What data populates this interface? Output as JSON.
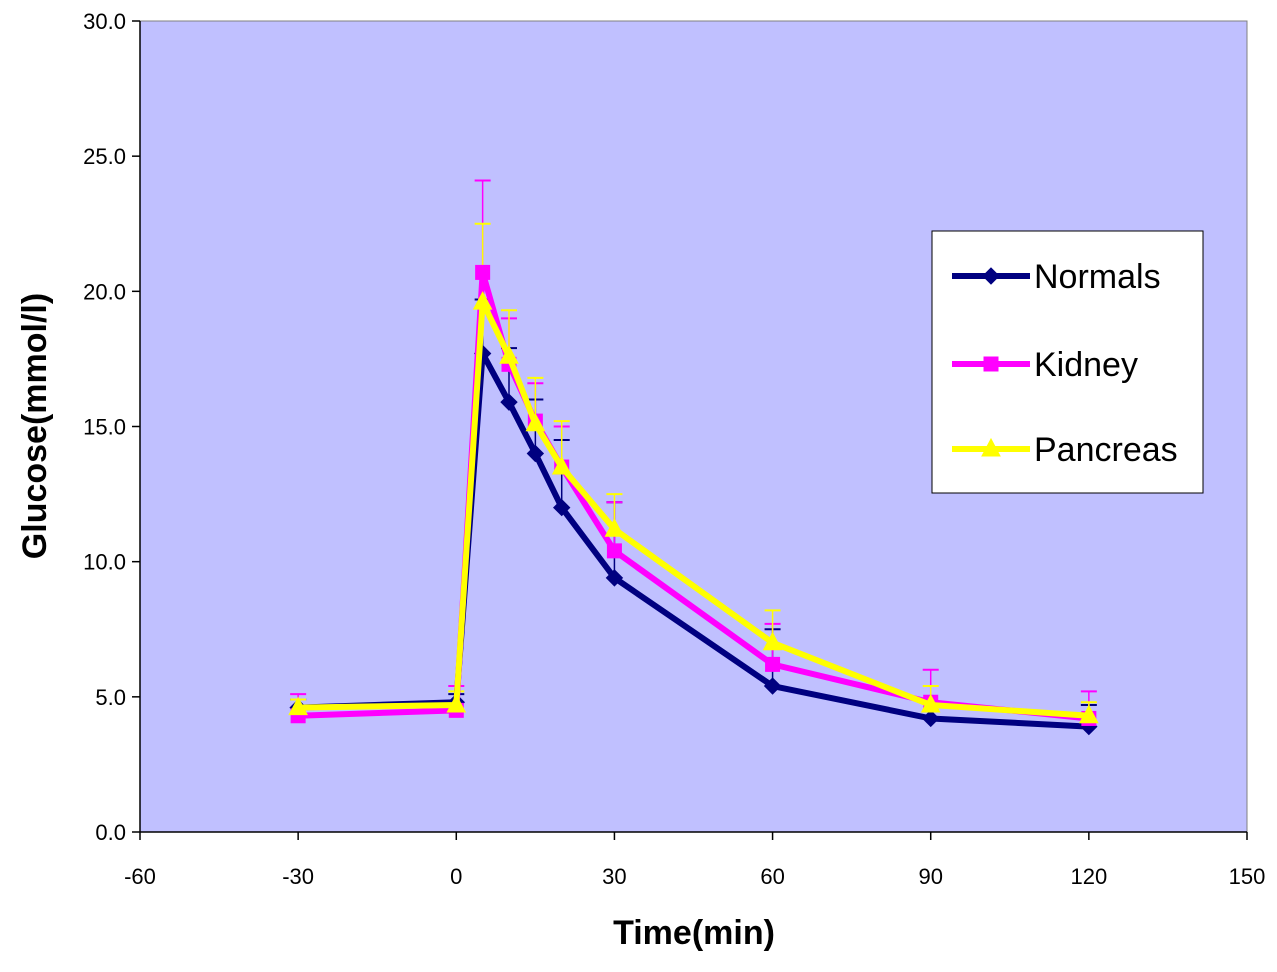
{
  "chart_data": {
    "type": "line",
    "title": "",
    "xlabel": "Time(min)",
    "ylabel": "Glucose(mmol/l)",
    "xlim": [
      -60,
      150
    ],
    "ylim": [
      0,
      30
    ],
    "x_ticks": [
      -60,
      -30,
      0,
      30,
      60,
      90,
      120,
      150
    ],
    "x_tick_labels": [
      "-60",
      "-30",
      "0",
      "30",
      "60",
      "90",
      "120",
      "150"
    ],
    "y_ticks": [
      0,
      5,
      10,
      15,
      20,
      25,
      30
    ],
    "y_tick_labels": [
      "0.0",
      "5.0",
      "10.0",
      "15.0",
      "20.0",
      "25.0",
      "30.0"
    ],
    "x": [
      -30,
      0,
      5,
      10,
      15,
      20,
      30,
      60,
      90,
      120
    ],
    "grid": false,
    "legend_position": "right",
    "plot_background": "#c0c0ff",
    "series": [
      {
        "name": "Normals",
        "color": "#000080",
        "marker": "diamond",
        "values": [
          4.6,
          4.8,
          17.7,
          15.9,
          14.0,
          12.0,
          9.4,
          5.4,
          4.2,
          3.9
        ],
        "errors": [
          0.3,
          0.3,
          2.0,
          2.0,
          2.0,
          2.5,
          2.8,
          2.1,
          0.3,
          0.8
        ]
      },
      {
        "name": "Kidney",
        "color": "#ff00ff",
        "marker": "square",
        "values": [
          4.3,
          4.5,
          20.7,
          17.3,
          15.2,
          13.5,
          10.4,
          6.2,
          4.8,
          4.2
        ],
        "errors": [
          0.8,
          0.9,
          3.4,
          1.7,
          1.4,
          1.5,
          1.8,
          1.5,
          1.2,
          1.0
        ]
      },
      {
        "name": "Pancreas",
        "color": "#ffff00",
        "marker": "triangle",
        "values": [
          4.6,
          4.7,
          19.6,
          17.6,
          15.1,
          13.5,
          11.2,
          7.0,
          4.7,
          4.3
        ],
        "errors": [
          0.3,
          0.5,
          2.9,
          1.7,
          1.7,
          1.7,
          1.3,
          1.2,
          0.7,
          0.5
        ]
      }
    ]
  }
}
